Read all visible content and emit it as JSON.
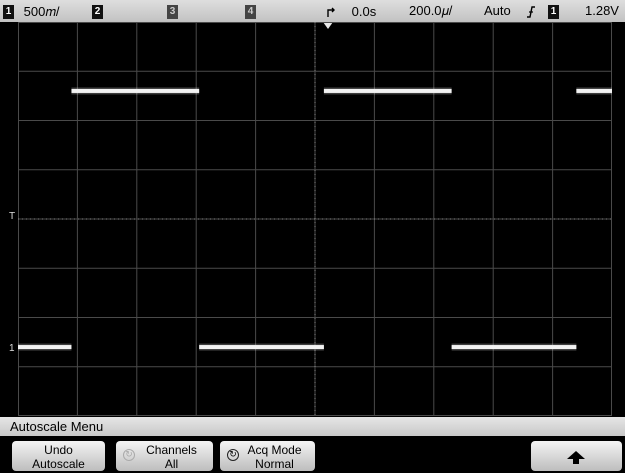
{
  "status_bar": {
    "ch1_label": "1",
    "ch1_scale": "500𝑚/",
    "ch2_label": "2",
    "ch3_label": "3",
    "ch4_label": "4",
    "trigger_position": "0.0s",
    "time_scale": "200.0𝜇/",
    "trigger_mode": "Auto",
    "trigger_slope_icon": "rising-edge-icon",
    "trigger_source": "1",
    "trigger_level": "1.28V"
  },
  "markers": {
    "trigger_level_marker": "T",
    "ground_marker": "1"
  },
  "waveform": {
    "color": "#f2f2f2",
    "shape": "square",
    "time_per_division_us": 200,
    "volts_per_division_mv": 500,
    "divisions_x": 10,
    "divisions_y": 8,
    "high_level_div": 2.6,
    "low_level_div": -2.6,
    "segments": [
      {
        "level": "low",
        "start_div": 0.0,
        "end_div": 0.9
      },
      {
        "level": "high",
        "start_div": 0.9,
        "end_div": 3.05
      },
      {
        "level": "low",
        "start_div": 3.05,
        "end_div": 5.15
      },
      {
        "level": "high",
        "start_div": 5.15,
        "end_div": 7.3
      },
      {
        "level": "low",
        "start_div": 7.3,
        "end_div": 9.4
      },
      {
        "level": "high",
        "start_div": 9.4,
        "end_div": 10.0
      }
    ]
  },
  "menu": {
    "title": "Autoscale Menu",
    "softkeys": [
      {
        "line1": "Undo",
        "line2": "Autoscale",
        "icon": ""
      },
      {
        "line1": "Channels",
        "line2": "All",
        "icon": "entry-knob-icon-dimmed"
      },
      {
        "line1": "Acq Mode",
        "line2": "Normal",
        "icon": "entry-knob-icon"
      },
      {
        "line1": "",
        "line2": "",
        "icon": ""
      },
      {
        "line1": "",
        "line2": "",
        "icon": ""
      },
      {
        "line1": "",
        "line2": "",
        "icon": "up-arrow-icon"
      }
    ]
  },
  "colors": {
    "grid": "#4a4a4a",
    "grid_center": "#8a8a8a",
    "background": "#000000",
    "status_bar": "#cfcfcf"
  }
}
